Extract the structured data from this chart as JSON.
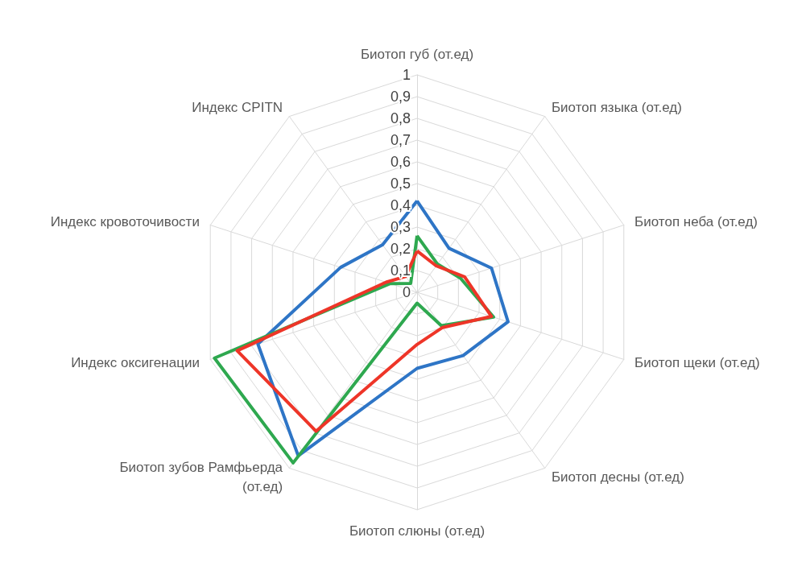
{
  "chart_data": {
    "type": "radar",
    "categories": [
      "Биотоп губ (от.ед)",
      "Биотоп языка (от.ед)",
      "Биотоп неба (от.ед)",
      "Биотоп щеки (от.ед)",
      "Биотоп десны (от.ед)",
      "Биотоп слюны (от.ед)",
      "Биотоп зубов Рамфьерда (от.ед)",
      "Индекс оксигенации",
      "Индекс кровоточивости",
      "Индекс CPITN"
    ],
    "series": [
      {
        "color": "#2e75c6",
        "values": [
          0.42,
          0.25,
          0.36,
          0.44,
          0.36,
          0.35,
          0.93,
          0.77,
          0.37,
          0.27
        ]
      },
      {
        "color": "#2ea84f",
        "values": [
          0.26,
          0.16,
          0.21,
          0.37,
          0.19,
          0.05,
          0.97,
          0.98,
          0.13,
          0.05
        ]
      },
      {
        "color": "#ee3528",
        "values": [
          0.19,
          0.15,
          0.23,
          0.36,
          0.2,
          0.24,
          0.79,
          0.87,
          0.15,
          0.09
        ]
      }
    ],
    "ylim": [
      0,
      1
    ],
    "yticks": [
      0,
      {
        "value": 0.1,
        "label": "0,1"
      },
      {
        "value": 0.2,
        "label": "0,2"
      },
      {
        "value": 0.3,
        "label": "0,3"
      },
      {
        "value": 0.4,
        "label": "0,4"
      },
      {
        "value": 0.5,
        "label": "0,5"
      },
      {
        "value": 0.6,
        "label": "0,6"
      },
      {
        "value": 0.7,
        "label": "0,7"
      },
      {
        "value": 0.8,
        "label": "0,8"
      },
      {
        "value": 0.9,
        "label": "0,9"
      },
      1
    ],
    "grid": true,
    "marker": "none",
    "line_style": "solid"
  }
}
